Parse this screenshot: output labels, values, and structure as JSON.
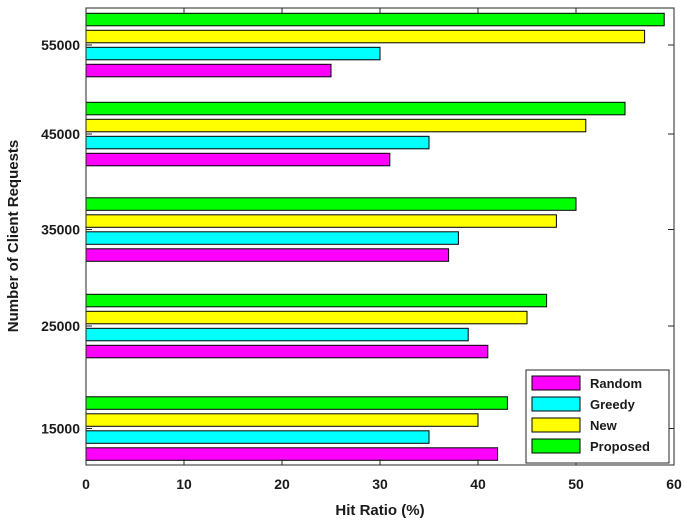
{
  "chart_data": {
    "type": "bar",
    "orientation": "horizontal",
    "title": "",
    "xlabel": "Hit Ratio (%)",
    "ylabel": "Number of Client Requests",
    "categories": [
      "15000",
      "25000",
      "35000",
      "45000",
      "55000"
    ],
    "xlim": [
      0,
      60
    ],
    "xticks": [
      "0",
      "10",
      "20",
      "30",
      "40",
      "50",
      "60"
    ],
    "grid": false,
    "legend_position": "bottom-right",
    "series": [
      {
        "name": "Random",
        "color": "#ff00ff",
        "values": [
          42,
          41,
          37,
          31,
          25
        ]
      },
      {
        "name": "Greedy",
        "color": "#00ffff",
        "values": [
          35,
          39,
          38,
          35,
          30
        ]
      },
      {
        "name": "New",
        "color": "#ffff00",
        "values": [
          40,
          45,
          48,
          51,
          57
        ]
      },
      {
        "name": "Proposed",
        "color": "#00ff00",
        "values": [
          43,
          47,
          50,
          55,
          59
        ]
      }
    ]
  }
}
